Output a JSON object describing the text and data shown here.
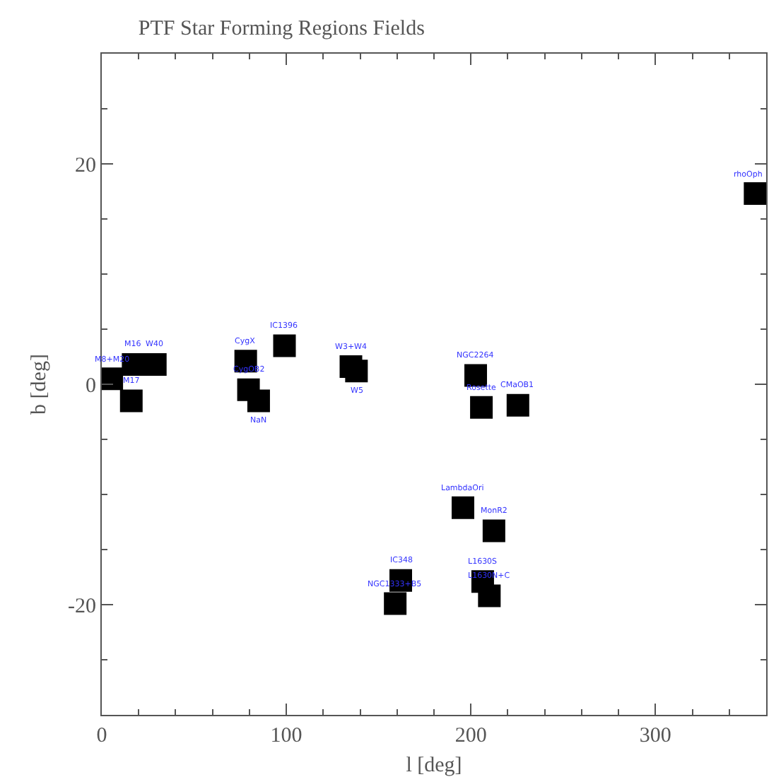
{
  "chart_data": {
    "type": "scatter",
    "title": "PTF Star Forming Regions Fields",
    "xlabel": "l [deg]",
    "ylabel": "b [deg]",
    "x": [
      5.4,
      17,
      29,
      16,
      78,
      99,
      79.5,
      85,
      135,
      138,
      202.6,
      205.7,
      225.5,
      195.7,
      212.5,
      162,
      159,
      206.4,
      210,
      354
    ],
    "series": [
      {
        "color": "#000000",
        "values": [
          0.5,
          1.8,
          1.8,
          -1.5,
          2.1,
          3.5,
          -0.5,
          -1.5,
          1.6,
          1.2,
          0.8,
          -2.1,
          -1.9,
          -11.2,
          -13.3,
          -17.8,
          -19.9,
          -17.9,
          -19.2,
          17.3
        ]
      }
    ],
    "marker": "square",
    "xlim": [
      0,
      360
    ],
    "ylim": [
      -30,
      30
    ],
    "xticks": [
      0,
      100,
      200,
      300
    ],
    "yticks": [
      -20,
      0,
      20
    ],
    "grid": false,
    "annotations": [
      {
        "text": "M8+M20",
        "x": 5.4,
        "y": 0.5
      },
      {
        "text": "M16",
        "x": 17,
        "y": 1.8
      },
      {
        "text": "W40",
        "x": 29,
        "y": 1.8
      },
      {
        "text": "M17",
        "x": 16,
        "y": -1.5
      },
      {
        "text": "CygX",
        "x": 78,
        "y": 2.1
      },
      {
        "text": "IC1396",
        "x": 99,
        "y": 3.5
      },
      {
        "text": "CygOB2",
        "x": 79.5,
        "y": -0.5
      },
      {
        "text": "NaN",
        "x": 85,
        "y": -1.5
      },
      {
        "text": "W3+W4",
        "x": 135,
        "y": 1.6
      },
      {
        "text": "W5",
        "x": 138,
        "y": 1.2
      },
      {
        "text": "NGC2264",
        "x": 202.6,
        "y": 0.8
      },
      {
        "text": "Rosette",
        "x": 205.7,
        "y": -2.1
      },
      {
        "text": "CMaOB1",
        "x": 225.5,
        "y": -1.9
      },
      {
        "text": "LambdaOri",
        "x": 195.7,
        "y": -11.2
      },
      {
        "text": "MonR2",
        "x": 212.5,
        "y": -13.3
      },
      {
        "text": "IC348",
        "x": 162,
        "y": -17.8
      },
      {
        "text": "NGC1333+B5",
        "x": 159,
        "y": -19.9
      },
      {
        "text": "L1630S",
        "x": 206.4,
        "y": -17.9
      },
      {
        "text": "L1630N+C",
        "x": 210,
        "y": -19.2
      },
      {
        "text": "rhoOph",
        "x": 354,
        "y": 17.3
      }
    ]
  }
}
